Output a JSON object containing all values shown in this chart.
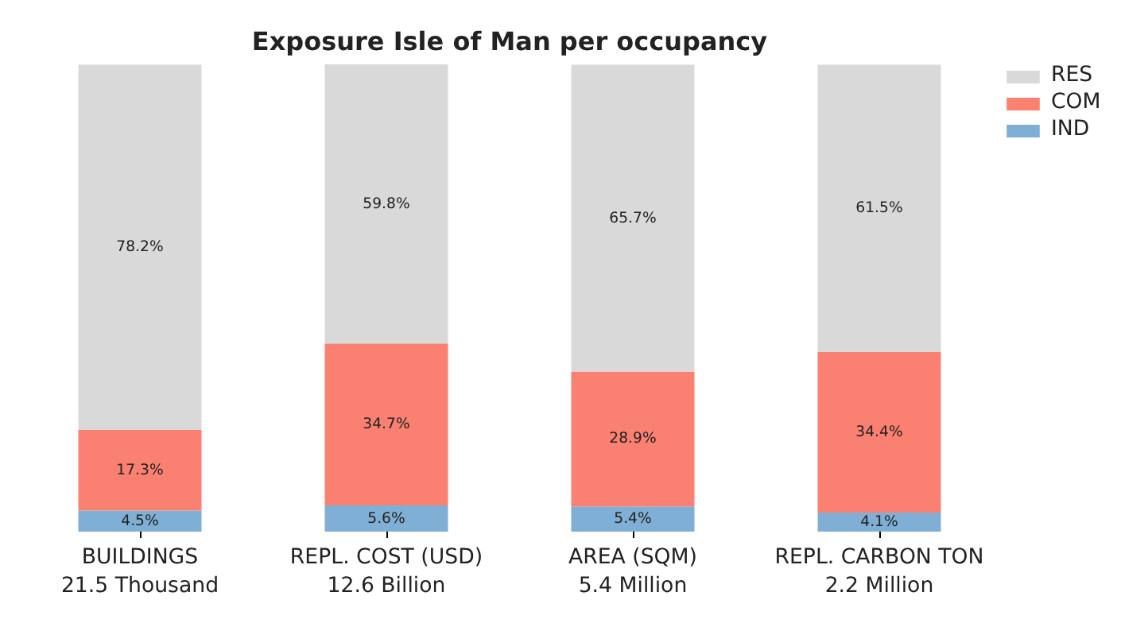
{
  "chart_data": {
    "type": "bar",
    "stacked": true,
    "title": "Exposure Isle of Man per occupancy",
    "categories": [
      "BUILDINGS\n21.5 Thousand",
      "REPL. COST (USD)\n12.6 Billion",
      "AREA (SQM)\n5.4 Million",
      "REPL. CARBON TON\n2.2 Million"
    ],
    "series": [
      {
        "name": "IND",
        "color": "#7fafd4",
        "values": [
          4.5,
          5.6,
          5.4,
          4.1
        ],
        "value_labels": [
          "4.5%",
          "5.6%",
          "5.4%",
          "4.1%"
        ]
      },
      {
        "name": "COM",
        "color": "#fa8072",
        "values": [
          17.3,
          34.7,
          28.9,
          34.4
        ],
        "value_labels": [
          "17.3%",
          "34.7%",
          "28.9%",
          "34.4%"
        ]
      },
      {
        "name": "RES",
        "color": "#d9d9d9",
        "values": [
          78.2,
          59.8,
          65.7,
          61.5
        ],
        "value_labels": [
          "78.2%",
          "59.8%",
          "65.7%",
          "61.5%"
        ]
      }
    ],
    "legend": "top right",
    "grid": false,
    "tick_labels": "x"
  }
}
